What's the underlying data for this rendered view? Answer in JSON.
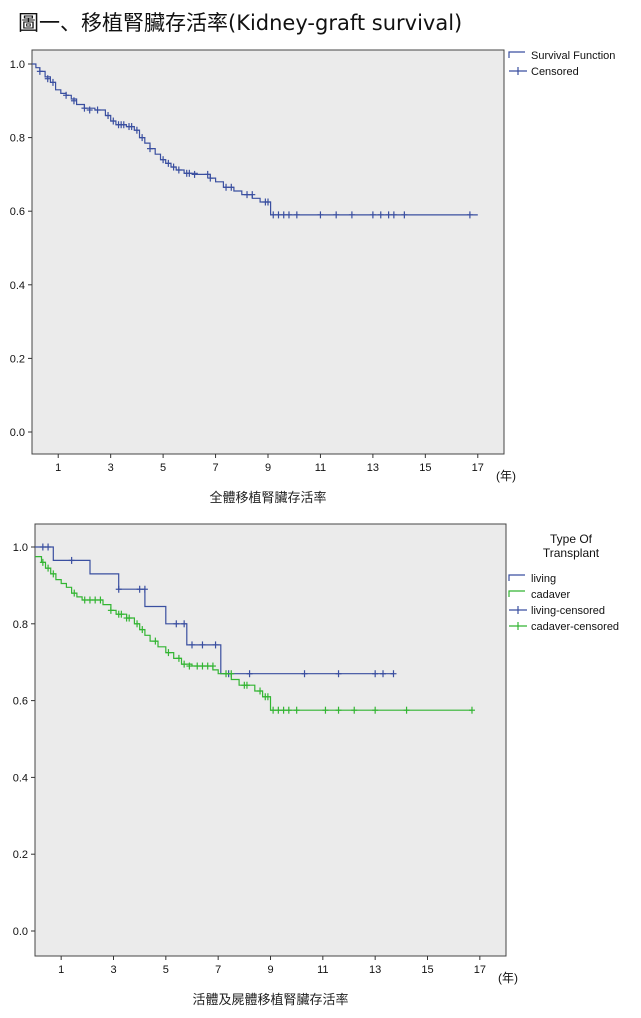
{
  "page_title": "圖一、移植腎臟存活率(Kidney-graft survival)",
  "chart_data": [
    {
      "type": "line",
      "subtype": "kaplan-meier",
      "title": "",
      "xlabel": "全體移植腎臟存活率",
      "x_unit": "(年)",
      "ylabel": "",
      "xlim": [
        0,
        18
      ],
      "ylim": [
        0,
        1
      ],
      "xticks": [
        1,
        3,
        5,
        7,
        9,
        11,
        13,
        15,
        17
      ],
      "yticks": [
        "0.0",
        "0.2",
        "0.4",
        "0.6",
        "0.8",
        "1.0"
      ],
      "grid": false,
      "background": "#ebebeb",
      "legend_position": "top-right",
      "legend_title": "",
      "legend": [
        {
          "label": "Survival Function",
          "kind": "line",
          "color": "#3a4fa0"
        },
        {
          "label": "Censored",
          "kind": "censor",
          "color": "#3a4fa0"
        }
      ],
      "series": [
        {
          "name": "Survival Function",
          "color": "#3a4fa0",
          "steps": [
            [
              0,
              1.0
            ],
            [
              0.15,
              0.99
            ],
            [
              0.3,
              0.98
            ],
            [
              0.5,
              0.965
            ],
            [
              0.7,
              0.95
            ],
            [
              0.9,
              0.93
            ],
            [
              1.1,
              0.92
            ],
            [
              1.3,
              0.915
            ],
            [
              1.5,
              0.905
            ],
            [
              1.7,
              0.89
            ],
            [
              2.0,
              0.88
            ],
            [
              2.4,
              0.875
            ],
            [
              2.8,
              0.86
            ],
            [
              3.0,
              0.845
            ],
            [
              3.2,
              0.835
            ],
            [
              3.6,
              0.83
            ],
            [
              3.9,
              0.82
            ],
            [
              4.1,
              0.8
            ],
            [
              4.3,
              0.785
            ],
            [
              4.5,
              0.77
            ],
            [
              4.7,
              0.755
            ],
            [
              4.9,
              0.74
            ],
            [
              5.1,
              0.73
            ],
            [
              5.3,
              0.72
            ],
            [
              5.5,
              0.712
            ],
            [
              5.8,
              0.703
            ],
            [
              6.3,
              0.7
            ],
            [
              6.8,
              0.69
            ],
            [
              7.0,
              0.68
            ],
            [
              7.3,
              0.665
            ],
            [
              7.7,
              0.655
            ],
            [
              8.0,
              0.645
            ],
            [
              8.4,
              0.635
            ],
            [
              8.7,
              0.625
            ],
            [
              9.1,
              0.59
            ],
            [
              17,
              0.59
            ]
          ],
          "censored": [
            [
              0.3,
              0.98
            ],
            [
              0.6,
              0.96
            ],
            [
              0.8,
              0.95
            ],
            [
              1.3,
              0.915
            ],
            [
              1.6,
              0.9
            ],
            [
              2.0,
              0.88
            ],
            [
              2.2,
              0.875
            ],
            [
              2.5,
              0.875
            ],
            [
              2.9,
              0.86
            ],
            [
              3.1,
              0.845
            ],
            [
              3.3,
              0.835
            ],
            [
              3.4,
              0.835
            ],
            [
              3.5,
              0.835
            ],
            [
              3.7,
              0.83
            ],
            [
              3.8,
              0.83
            ],
            [
              4.0,
              0.82
            ],
            [
              4.2,
              0.8
            ],
            [
              4.5,
              0.77
            ],
            [
              5.0,
              0.74
            ],
            [
              5.2,
              0.73
            ],
            [
              5.4,
              0.72
            ],
            [
              5.6,
              0.712
            ],
            [
              5.9,
              0.703
            ],
            [
              6.0,
              0.703
            ],
            [
              6.2,
              0.7
            ],
            [
              6.7,
              0.7
            ],
            [
              6.8,
              0.69
            ],
            [
              7.4,
              0.665
            ],
            [
              7.6,
              0.665
            ],
            [
              8.2,
              0.645
            ],
            [
              8.4,
              0.645
            ],
            [
              8.9,
              0.625
            ],
            [
              9.0,
              0.625
            ],
            [
              9.2,
              0.59
            ],
            [
              9.4,
              0.59
            ],
            [
              9.6,
              0.59
            ],
            [
              9.8,
              0.59
            ],
            [
              10.1,
              0.59
            ],
            [
              11.0,
              0.59
            ],
            [
              11.6,
              0.59
            ],
            [
              12.2,
              0.59
            ],
            [
              13.0,
              0.59
            ],
            [
              13.3,
              0.59
            ],
            [
              13.6,
              0.59
            ],
            [
              13.8,
              0.59
            ],
            [
              14.2,
              0.59
            ],
            [
              16.7,
              0.59
            ]
          ]
        }
      ]
    },
    {
      "type": "line",
      "subtype": "kaplan-meier",
      "title": "",
      "xlabel": "活體及屍體移植腎臟存活率",
      "x_unit": "(年)",
      "ylabel": "",
      "xlim": [
        0,
        18
      ],
      "ylim": [
        0,
        1
      ],
      "xticks": [
        1,
        3,
        5,
        7,
        9,
        11,
        13,
        15,
        17
      ],
      "yticks": [
        "0.0",
        "0.2",
        "0.4",
        "0.6",
        "0.8",
        "1.0"
      ],
      "grid": false,
      "background": "#ebebeb",
      "legend_position": "top-right",
      "legend_title": "Type Of Transplant",
      "legend_title_lines": [
        "Type Of",
        "Transplant"
      ],
      "legend": [
        {
          "label": "living",
          "kind": "line",
          "color": "#3a4fa0"
        },
        {
          "label": "cadaver",
          "kind": "line",
          "color": "#33b533"
        },
        {
          "label": "living-censored",
          "kind": "censor",
          "color": "#3a4fa0"
        },
        {
          "label": "cadaver-censored",
          "kind": "censor",
          "color": "#33b533"
        }
      ],
      "series": [
        {
          "name": "living",
          "color": "#3a4fa0",
          "steps": [
            [
              0,
              1.0
            ],
            [
              0.7,
              0.965
            ],
            [
              2.1,
              0.93
            ],
            [
              3.2,
              0.89
            ],
            [
              4.2,
              0.845
            ],
            [
              5.0,
              0.8
            ],
            [
              5.8,
              0.745
            ],
            [
              7.1,
              0.67
            ],
            [
              13.7,
              0.67
            ]
          ],
          "censored": [
            [
              0.3,
              1.0
            ],
            [
              0.5,
              1.0
            ],
            [
              1.4,
              0.965
            ],
            [
              3.2,
              0.89
            ],
            [
              4.0,
              0.89
            ],
            [
              4.2,
              0.89
            ],
            [
              5.4,
              0.8
            ],
            [
              5.7,
              0.8
            ],
            [
              6.0,
              0.745
            ],
            [
              6.4,
              0.745
            ],
            [
              6.9,
              0.745
            ],
            [
              7.4,
              0.67
            ],
            [
              8.2,
              0.67
            ],
            [
              10.3,
              0.67
            ],
            [
              11.6,
              0.67
            ],
            [
              13.0,
              0.67
            ],
            [
              13.3,
              0.67
            ],
            [
              13.7,
              0.67
            ]
          ]
        },
        {
          "name": "cadaver",
          "color": "#33b533",
          "steps": [
            [
              0,
              0.975
            ],
            [
              0.25,
              0.96
            ],
            [
              0.4,
              0.945
            ],
            [
              0.6,
              0.93
            ],
            [
              0.8,
              0.915
            ],
            [
              1.0,
              0.905
            ],
            [
              1.2,
              0.895
            ],
            [
              1.4,
              0.88
            ],
            [
              1.6,
              0.87
            ],
            [
              1.8,
              0.862
            ],
            [
              2.6,
              0.85
            ],
            [
              2.9,
              0.835
            ],
            [
              3.1,
              0.825
            ],
            [
              3.5,
              0.815
            ],
            [
              3.8,
              0.8
            ],
            [
              4.0,
              0.785
            ],
            [
              4.2,
              0.77
            ],
            [
              4.4,
              0.755
            ],
            [
              4.7,
              0.74
            ],
            [
              5.0,
              0.725
            ],
            [
              5.3,
              0.71
            ],
            [
              5.6,
              0.695
            ],
            [
              6.0,
              0.69
            ],
            [
              6.8,
              0.68
            ],
            [
              7.0,
              0.67
            ],
            [
              7.5,
              0.655
            ],
            [
              7.8,
              0.64
            ],
            [
              8.4,
              0.625
            ],
            [
              8.7,
              0.61
            ],
            [
              9.0,
              0.575
            ],
            [
              16.7,
              0.575
            ]
          ],
          "censored": [
            [
              0.3,
              0.96
            ],
            [
              0.5,
              0.945
            ],
            [
              0.7,
              0.93
            ],
            [
              1.5,
              0.88
            ],
            [
              1.9,
              0.862
            ],
            [
              2.1,
              0.862
            ],
            [
              2.3,
              0.862
            ],
            [
              2.5,
              0.862
            ],
            [
              2.9,
              0.835
            ],
            [
              3.2,
              0.825
            ],
            [
              3.3,
              0.825
            ],
            [
              3.5,
              0.815
            ],
            [
              3.6,
              0.815
            ],
            [
              3.9,
              0.8
            ],
            [
              4.1,
              0.785
            ],
            [
              4.6,
              0.755
            ],
            [
              5.1,
              0.725
            ],
            [
              5.5,
              0.71
            ],
            [
              5.7,
              0.695
            ],
            [
              5.9,
              0.69
            ],
            [
              6.2,
              0.69
            ],
            [
              6.4,
              0.69
            ],
            [
              6.6,
              0.69
            ],
            [
              6.8,
              0.69
            ],
            [
              7.3,
              0.67
            ],
            [
              7.5,
              0.67
            ],
            [
              8.0,
              0.64
            ],
            [
              8.1,
              0.64
            ],
            [
              8.6,
              0.625
            ],
            [
              8.8,
              0.61
            ],
            [
              8.9,
              0.61
            ],
            [
              9.1,
              0.575
            ],
            [
              9.3,
              0.575
            ],
            [
              9.5,
              0.575
            ],
            [
              9.7,
              0.575
            ],
            [
              10.0,
              0.575
            ],
            [
              11.1,
              0.575
            ],
            [
              11.6,
              0.575
            ],
            [
              12.2,
              0.575
            ],
            [
              13.0,
              0.575
            ],
            [
              14.2,
              0.575
            ],
            [
              16.7,
              0.575
            ]
          ]
        }
      ]
    }
  ]
}
